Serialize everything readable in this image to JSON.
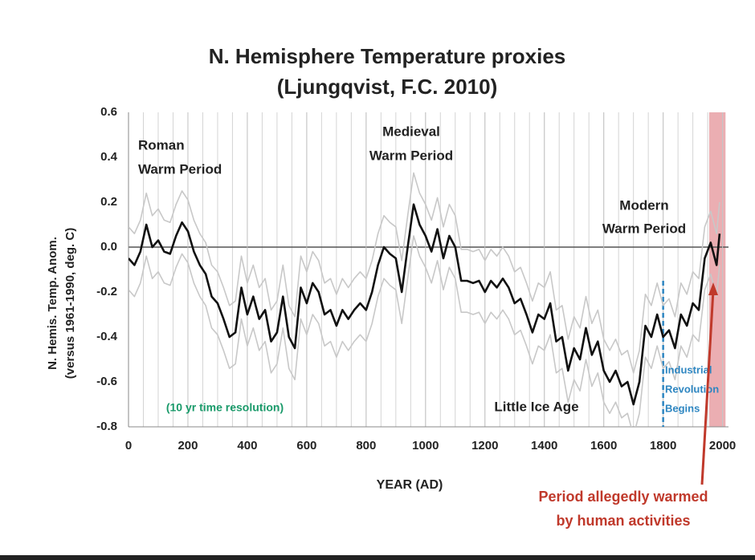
{
  "chart_data": {
    "type": "line",
    "title": [
      "N. Hemisphere Temperature proxies",
      "(Ljungqvist, F.C.  2010)"
    ],
    "y_label": [
      "N. Hemis. Temp. Anom.",
      "(versus 1961-1990, deg. C)"
    ],
    "x_label": "YEAR (AD)",
    "xlim": [
      0,
      2020
    ],
    "ylim": [
      -0.8,
      0.6
    ],
    "xticks": [
      0,
      200,
      400,
      600,
      800,
      1000,
      1200,
      1400,
      1600,
      1800,
      2000
    ],
    "yticks": [
      0.6,
      0.4,
      0.2,
      {
        "value": 0,
        "label": "0.0"
      },
      -0.2,
      -0.4,
      -0.6,
      -0.8
    ],
    "grid": true,
    "x_minor_grid": 50,
    "x": [
      0,
      20,
      40,
      60,
      80,
      100,
      120,
      140,
      160,
      180,
      200,
      220,
      240,
      260,
      280,
      300,
      320,
      340,
      360,
      380,
      400,
      420,
      440,
      460,
      480,
      500,
      520,
      540,
      560,
      580,
      600,
      620,
      640,
      660,
      680,
      700,
      720,
      740,
      760,
      780,
      800,
      820,
      840,
      860,
      880,
      900,
      920,
      940,
      960,
      980,
      1000,
      1020,
      1040,
      1060,
      1080,
      1100,
      1120,
      1140,
      1160,
      1180,
      1200,
      1220,
      1240,
      1260,
      1280,
      1300,
      1320,
      1340,
      1360,
      1380,
      1400,
      1420,
      1440,
      1460,
      1480,
      1500,
      1520,
      1540,
      1560,
      1580,
      1600,
      1620,
      1640,
      1660,
      1680,
      1700,
      1720,
      1740,
      1760,
      1780,
      1800,
      1820,
      1840,
      1860,
      1880,
      1900,
      1920,
      1940,
      1960,
      1980,
      1990
    ],
    "series": [
      {
        "name": "upper bound",
        "color": "#c8c8c8",
        "values": [
          0.09,
          0.06,
          0.12,
          0.24,
          0.14,
          0.17,
          0.12,
          0.11,
          0.19,
          0.25,
          0.21,
          0.12,
          0.06,
          0.02,
          -0.08,
          -0.11,
          -0.18,
          -0.26,
          -0.24,
          -0.04,
          -0.16,
          -0.08,
          -0.18,
          -0.14,
          -0.28,
          -0.24,
          -0.08,
          -0.26,
          -0.31,
          -0.04,
          -0.11,
          -0.02,
          -0.06,
          -0.16,
          -0.14,
          -0.21,
          -0.14,
          -0.18,
          -0.14,
          -0.11,
          -0.14,
          -0.06,
          0.06,
          0.14,
          0.11,
          0.09,
          -0.06,
          0.14,
          0.33,
          0.24,
          0.19,
          0.12,
          0.22,
          0.09,
          0.19,
          0.14,
          -0.01,
          -0.01,
          -0.02,
          -0.01,
          -0.06,
          -0.01,
          -0.04,
          0.0,
          -0.04,
          -0.11,
          -0.09,
          -0.16,
          -0.24,
          -0.16,
          -0.18,
          -0.11,
          -0.28,
          -0.26,
          -0.41,
          -0.31,
          -0.36,
          -0.22,
          -0.34,
          -0.28,
          -0.41,
          -0.46,
          -0.41,
          -0.48,
          -0.46,
          -0.56,
          -0.46,
          -0.21,
          -0.26,
          -0.16,
          -0.26,
          -0.23,
          -0.31,
          -0.16,
          -0.21,
          -0.11,
          -0.14,
          0.09,
          0.16,
          0.06,
          0.2
        ]
      },
      {
        "name": "lower bound",
        "color": "#c8c8c8",
        "values": [
          -0.19,
          -0.22,
          -0.16,
          -0.04,
          -0.14,
          -0.11,
          -0.16,
          -0.17,
          -0.09,
          -0.03,
          -0.07,
          -0.16,
          -0.22,
          -0.26,
          -0.36,
          -0.39,
          -0.46,
          -0.54,
          -0.52,
          -0.32,
          -0.44,
          -0.36,
          -0.46,
          -0.42,
          -0.56,
          -0.52,
          -0.36,
          -0.54,
          -0.59,
          -0.32,
          -0.39,
          -0.3,
          -0.34,
          -0.44,
          -0.42,
          -0.49,
          -0.42,
          -0.46,
          -0.42,
          -0.39,
          -0.42,
          -0.34,
          -0.22,
          -0.14,
          -0.17,
          -0.19,
          -0.34,
          -0.14,
          0.05,
          -0.04,
          -0.09,
          -0.16,
          -0.06,
          -0.19,
          -0.09,
          -0.14,
          -0.29,
          -0.29,
          -0.3,
          -0.29,
          -0.34,
          -0.29,
          -0.32,
          -0.28,
          -0.32,
          -0.39,
          -0.37,
          -0.44,
          -0.52,
          -0.44,
          -0.46,
          -0.39,
          -0.56,
          -0.54,
          -0.69,
          -0.59,
          -0.64,
          -0.5,
          -0.62,
          -0.56,
          -0.69,
          -0.74,
          -0.69,
          -0.76,
          -0.74,
          -0.84,
          -0.74,
          -0.49,
          -0.54,
          -0.44,
          -0.54,
          -0.51,
          -0.59,
          -0.44,
          -0.49,
          -0.39,
          -0.42,
          -0.19,
          -0.12,
          -0.22,
          -0.08
        ]
      },
      {
        "name": "temperature anomaly",
        "color": "#111111",
        "values": [
          -0.05,
          -0.08,
          -0.02,
          0.1,
          0.0,
          0.03,
          -0.02,
          -0.03,
          0.05,
          0.11,
          0.07,
          -0.02,
          -0.08,
          -0.12,
          -0.22,
          -0.25,
          -0.32,
          -0.4,
          -0.38,
          -0.18,
          -0.3,
          -0.22,
          -0.32,
          -0.28,
          -0.42,
          -0.38,
          -0.22,
          -0.4,
          -0.45,
          -0.18,
          -0.25,
          -0.16,
          -0.2,
          -0.3,
          -0.28,
          -0.35,
          -0.28,
          -0.32,
          -0.28,
          -0.25,
          -0.28,
          -0.2,
          -0.08,
          0.0,
          -0.03,
          -0.05,
          -0.2,
          0.0,
          0.19,
          0.1,
          0.05,
          -0.02,
          0.08,
          -0.05,
          0.05,
          0.0,
          -0.15,
          -0.15,
          -0.16,
          -0.15,
          -0.2,
          -0.15,
          -0.18,
          -0.14,
          -0.18,
          -0.25,
          -0.23,
          -0.3,
          -0.38,
          -0.3,
          -0.32,
          -0.25,
          -0.42,
          -0.4,
          -0.55,
          -0.45,
          -0.5,
          -0.36,
          -0.48,
          -0.42,
          -0.55,
          -0.6,
          -0.55,
          -0.62,
          -0.6,
          -0.7,
          -0.6,
          -0.35,
          -0.4,
          -0.3,
          -0.4,
          -0.37,
          -0.45,
          -0.3,
          -0.35,
          -0.25,
          -0.28,
          -0.05,
          0.02,
          -0.08,
          0.06
        ]
      }
    ],
    "highlight_span": [
      1955,
      2010
    ],
    "highlight_color": "#e8a0a4",
    "marker_line": 1800,
    "marker_color": "#2e86c1",
    "annotations": [
      {
        "text": [
          "Roman",
          "Warm Period"
        ],
        "color": "#222222"
      },
      {
        "text": [
          "Medieval",
          "Warm Period"
        ],
        "color": "#222222"
      },
      {
        "text": [
          "Modern",
          "Warm Period"
        ],
        "color": "#222222"
      },
      {
        "text": [
          "Little Ice Age"
        ],
        "color": "#222222"
      },
      {
        "text": [
          "(10 yr time resolution)"
        ],
        "color": "#1a9a6a"
      },
      {
        "text": [
          "Industrial",
          "Revolution",
          "Begins"
        ],
        "color": "#2e86c1"
      },
      {
        "text": [
          "Period allegedly warmed",
          "by human activities"
        ],
        "color": "#c0392b"
      }
    ]
  }
}
